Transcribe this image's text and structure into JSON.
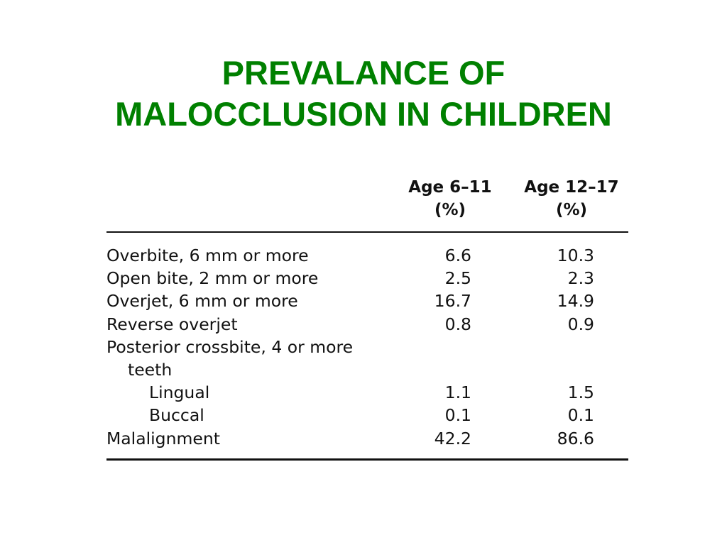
{
  "title": {
    "line1": "PREVALANCE OF",
    "line2": "MALOCCLUSION IN CHILDREN"
  },
  "table": {
    "columns": [
      {
        "line1": "Age 6–11",
        "line2": "(%)"
      },
      {
        "line1": "Age 12–17",
        "line2": "(%)"
      }
    ],
    "rows": [
      {
        "label": "Overbite, 6 mm or more",
        "v1": "6.6",
        "v2": "10.3"
      },
      {
        "label": "Open bite, 2 mm or more",
        "v1": "2.5",
        "v2": "2.3"
      },
      {
        "label": "Overjet, 6 mm or more",
        "v1": "16.7",
        "v2": "14.9"
      },
      {
        "label": "Reverse overjet",
        "v1": "0.8",
        "v2": "0.9"
      },
      {
        "label": "Posterior crossbite, 4 or more",
        "v1": "",
        "v2": ""
      },
      {
        "label": "teeth",
        "v1": "",
        "v2": ""
      },
      {
        "label": "Lingual",
        "v1": "1.1",
        "v2": "1.5"
      },
      {
        "label": "Buccal",
        "v1": "0.1",
        "v2": "0.1"
      },
      {
        "label": "Malalignment",
        "v1": "42.2",
        "v2": "86.6"
      }
    ]
  }
}
